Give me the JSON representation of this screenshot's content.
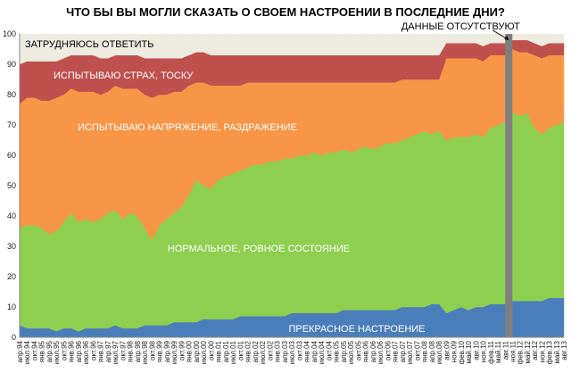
{
  "chart_data": {
    "type": "area",
    "stacked": true,
    "title": "ЧТО БЫ  ВЫ МОГЛИ СКАЗАТЬ О  СВОЕМ НАСТРОЕНИИ В ПОСЛЕДНИЕ ДНИ?",
    "ylim": [
      0,
      100
    ],
    "yticks": [
      0,
      10,
      20,
      30,
      40,
      50,
      60,
      70,
      80,
      90,
      100
    ],
    "grid": false,
    "legend": "inline labels",
    "gap_annotation": "ДАННЫЕ ОТСУТСТВУЮТ",
    "gap_after_index": 66,
    "categories": [
      "апр.94",
      "июл.94",
      "окт.94",
      "янв.95",
      "апр.95",
      "июл.95",
      "окт.95",
      "янв.96",
      "апр.96",
      "июл.96",
      "окт.96",
      "янв.97",
      "апр.97",
      "июл.97",
      "окт.97",
      "янв.98",
      "апр.98",
      "июл.98",
      "окт.98",
      "янв.99",
      "апр.99",
      "июл.99",
      "окт.99",
      "янв.00",
      "апр.00",
      "июл.00",
      "окт.00",
      "янв.01",
      "апр.01",
      "июл.01",
      "окт.01",
      "янв.02",
      "апр.02",
      "июл.02",
      "окт.02",
      "янв.03",
      "апр.03",
      "июл.03",
      "окт.03",
      "янв.04",
      "апр.04",
      "июл.04",
      "окт.04",
      "янв.05",
      "апр.05",
      "июл.05",
      "окт.05",
      "янв.06",
      "апр.06",
      "июл.06",
      "окт.06",
      "янв.07",
      "апр.07",
      "июл.07",
      "окт.07",
      "янв.08",
      "апр.08",
      "июл.08",
      "авг.09",
      "ноя.09",
      "фев.10",
      "май.10",
      "авг.10",
      "ноя.10",
      "фев.11",
      "май.11",
      "авг.11",
      "ноя.11",
      "фев.12",
      "май.12",
      "авг.12",
      "ноя.12",
      "фев.13",
      "май.13",
      "авг.13"
    ],
    "xtick_labels": [
      "апр.94",
      "июл.94",
      "окт.94",
      "янв.95",
      "апр.95",
      "июл.95",
      "окт.95",
      "янв.96",
      "апр.96",
      "июл.96",
      "окт.96",
      "янв.97",
      "апр.97",
      "июл.97",
      "окт.97",
      "янв.98",
      "апр.98",
      "июл.98",
      "окт.98",
      "янв.99",
      "апр.99",
      "июл.99",
      "окт.99",
      "янв.00",
      "апр.00",
      "июл.00",
      "окт.00",
      "янв.01",
      "апр.01",
      "июл.01",
      "окт.01",
      "янв.02",
      "апр.02",
      "июл.02",
      "окт.02",
      "янв.03",
      "апр.03",
      "июл.03",
      "окт.03",
      "янв.04",
      "апр.04",
      "июл.04",
      "окт.04",
      "янв.05",
      "апр.05",
      "июл.05",
      "окт.05",
      "янв.06",
      "апр.06",
      "июл.06",
      "окт.06",
      "янв.07",
      "апр.07",
      "июл.07",
      "окт.07",
      "янв.08",
      "апр.08",
      "июл.08",
      "авг.09",
      "ноя.09",
      "фев.10",
      "май.10",
      "авг.10",
      "ноя.10",
      "фев.11",
      "май.11",
      "авг.11",
      "ноя.11",
      "фев.12",
      "май.12",
      "авг.12",
      "ноя.12",
      "фев.13",
      "май.13",
      "авг.13"
    ],
    "series": [
      {
        "name": "ПРЕКРАСНОЕ НАСТРОЕНИЕ",
        "color": "#4a7ebb",
        "values": [
          4,
          3,
          3,
          3,
          3,
          2,
          3,
          3,
          2,
          3,
          3,
          3,
          3,
          4,
          3,
          3,
          3,
          4,
          4,
          4,
          4,
          5,
          5,
          5,
          5,
          6,
          6,
          6,
          6,
          6,
          7,
          7,
          7,
          7,
          7,
          7,
          7,
          8,
          8,
          8,
          8,
          8,
          8,
          8,
          9,
          9,
          9,
          9,
          9,
          9,
          9,
          9,
          10,
          10,
          10,
          10,
          11,
          11,
          8,
          9,
          10,
          9,
          10,
          10,
          11,
          11,
          11,
          12,
          12,
          12,
          12,
          12,
          13,
          13,
          13
        ]
      },
      {
        "name": "НОРМАЛЬНОЕ, РОВНОЕ СОСТОЯНИЕ",
        "color": "#8fcf4f",
        "values": [
          32,
          34,
          34,
          33,
          31,
          33,
          35,
          38,
          36,
          36,
          35,
          36,
          38,
          38,
          36,
          38,
          37,
          32,
          28,
          33,
          35,
          36,
          38,
          42,
          47,
          44,
          43,
          46,
          47,
          48,
          48,
          49,
          50,
          50,
          51,
          51,
          52,
          51,
          52,
          52,
          53,
          52,
          53,
          53,
          53,
          52,
          53,
          54,
          53,
          54,
          55,
          55,
          55,
          56,
          57,
          58,
          56,
          57,
          57,
          57,
          56,
          57,
          57,
          56,
          58,
          59,
          60,
          62,
          61,
          62,
          57,
          55,
          56,
          57,
          58
        ]
      },
      {
        "name": "ИСПЫТЫВАЮ НАПРЯЖЕНИЕ, РАЗДРАЖЕНИЕ",
        "color": "#f79646",
        "values": [
          41,
          42,
          42,
          42,
          44,
          44,
          42,
          41,
          43,
          42,
          43,
          41,
          40,
          41,
          43,
          41,
          42,
          44,
          47,
          43,
          41,
          40,
          38,
          36,
          32,
          34,
          34,
          31,
          30,
          29,
          28,
          28,
          27,
          27,
          26,
          26,
          25,
          25,
          24,
          24,
          23,
          24,
          23,
          23,
          22,
          23,
          22,
          21,
          22,
          21,
          20,
          20,
          20,
          19,
          18,
          17,
          18,
          17,
          27,
          26,
          26,
          26,
          25,
          25,
          24,
          23,
          22,
          21,
          21,
          20,
          24,
          25,
          24,
          23,
          22
        ]
      },
      {
        "name": "ИСПЫТЫВАЮ СТРАХ, ТОСКУ",
        "color": "#c0504d",
        "values": [
          13,
          12,
          12,
          13,
          13,
          12,
          12,
          11,
          12,
          12,
          12,
          12,
          11,
          10,
          11,
          11,
          11,
          12,
          13,
          12,
          12,
          11,
          11,
          10,
          10,
          10,
          10,
          10,
          10,
          10,
          10,
          9,
          9,
          9,
          9,
          9,
          9,
          9,
          9,
          9,
          9,
          9,
          9,
          9,
          9,
          9,
          9,
          9,
          9,
          9,
          9,
          9,
          8,
          8,
          8,
          8,
          8,
          8,
          5,
          5,
          5,
          5,
          5,
          5,
          4,
          4,
          4,
          3,
          4,
          4,
          4,
          4,
          4,
          4,
          4
        ]
      },
      {
        "name": "ЗАТРУДНЯЮСЬ ОТВЕТИТЬ",
        "color": "#eeece1",
        "values": [
          10,
          9,
          9,
          9,
          9,
          9,
          8,
          7,
          7,
          7,
          7,
          8,
          8,
          7,
          7,
          7,
          7,
          8,
          8,
          8,
          8,
          8,
          8,
          7,
          6,
          6,
          7,
          7,
          7,
          7,
          7,
          7,
          7,
          7,
          7,
          7,
          7,
          7,
          7,
          7,
          7,
          7,
          7,
          7,
          7,
          7,
          7,
          7,
          7,
          7,
          7,
          7,
          7,
          7,
          7,
          7,
          7,
          7,
          3,
          3,
          3,
          3,
          3,
          4,
          3,
          3,
          3,
          2,
          2,
          2,
          3,
          4,
          3,
          3,
          3
        ]
      }
    ]
  }
}
